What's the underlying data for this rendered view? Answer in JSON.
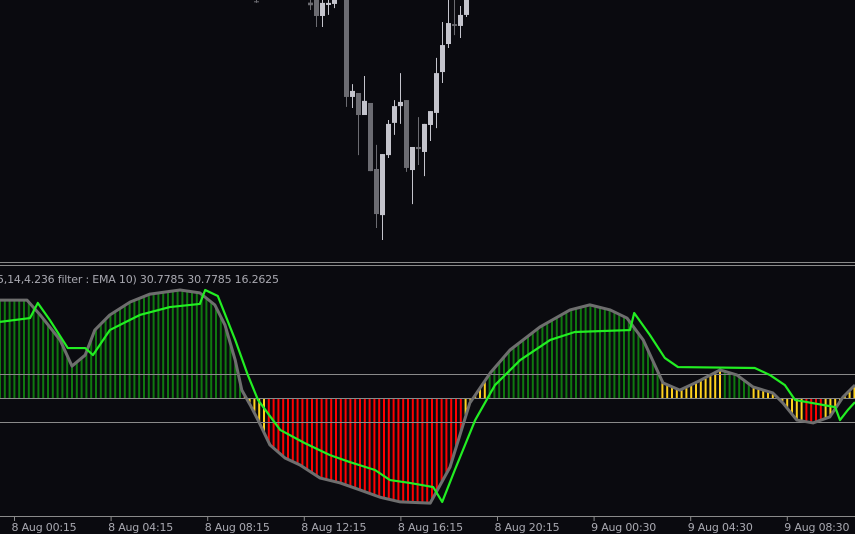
{
  "chart_data": [
    {
      "type": "candlestick",
      "title": "",
      "colors": {
        "bull": "#c4c4cc",
        "bear": "#6c6c72",
        "background": "#0a0a0f"
      },
      "candles": [
        {
          "bar": 42,
          "o": 99.5,
          "h": 100,
          "l": 98.9,
          "c": 99.3
        },
        {
          "bar": 51,
          "o": 99,
          "h": 100,
          "l": 96.2,
          "c": 98
        },
        {
          "bar": 52,
          "o": 100,
          "h": 100,
          "l": 89.7,
          "c": 93.9
        },
        {
          "bar": 53,
          "o": 93.9,
          "h": 100,
          "l": 89.7,
          "c": 98.9
        },
        {
          "bar": 54,
          "o": 98.1,
          "h": 100,
          "l": 94.3,
          "c": 98.9
        },
        {
          "bar": 55,
          "o": 98.5,
          "h": 100,
          "l": 96.9,
          "c": 100
        },
        {
          "bar": 57,
          "o": 100,
          "h": 100,
          "l": 59.2,
          "c": 63
        },
        {
          "bar": 58,
          "o": 63,
          "h": 67.9,
          "l": 58.8,
          "c": 65.3
        },
        {
          "bar": 59,
          "o": 64.5,
          "h": 64.5,
          "l": 40.8,
          "c": 56.1
        },
        {
          "bar": 60,
          "o": 56.1,
          "h": 71,
          "l": 56.1,
          "c": 61.5
        },
        {
          "bar": 61,
          "o": 60.7,
          "h": 60.7,
          "l": 34.7,
          "c": 34.7
        },
        {
          "bar": 62,
          "o": 35.5,
          "h": 44.7,
          "l": 13,
          "c": 18.3
        },
        {
          "bar": 63,
          "o": 17.9,
          "h": 41.2,
          "l": 8.4,
          "c": 41.2
        },
        {
          "bar": 64,
          "o": 40.8,
          "h": 54.2,
          "l": 39.7,
          "c": 52.7
        },
        {
          "bar": 65,
          "o": 53.1,
          "h": 61.8,
          "l": 48.5,
          "c": 59.5
        },
        {
          "bar": 66,
          "o": 59.5,
          "h": 72.1,
          "l": 52.7,
          "c": 61.1
        },
        {
          "bar": 67,
          "o": 61.8,
          "h": 61.8,
          "l": 34.4,
          "c": 35.9
        },
        {
          "bar": 68,
          "o": 35.1,
          "h": 43.9,
          "l": 22.1,
          "c": 43.9
        },
        {
          "bar": 69,
          "o": 43.9,
          "h": 55.3,
          "l": 37,
          "c": 43.1
        },
        {
          "bar": 70,
          "o": 42,
          "h": 52.7,
          "l": 32.8,
          "c": 52.7
        },
        {
          "bar": 71,
          "o": 52.3,
          "h": 57.6,
          "l": 46.2,
          "c": 57.6
        },
        {
          "bar": 72,
          "o": 56.9,
          "h": 77.9,
          "l": 51.1,
          "c": 72.1
        },
        {
          "bar": 73,
          "o": 72.5,
          "h": 91.6,
          "l": 68.3,
          "c": 82.8
        },
        {
          "bar": 74,
          "o": 83.2,
          "h": 100,
          "l": 81.7,
          "c": 91.2
        },
        {
          "bar": 75,
          "o": 90.8,
          "h": 100,
          "l": 86.6,
          "c": 90.1
        },
        {
          "bar": 76,
          "o": 90.1,
          "h": 97.7,
          "l": 85.5,
          "c": 94.3
        },
        {
          "bar": 77,
          "o": 94.3,
          "h": 100,
          "l": 93.5,
          "c": 100
        }
      ]
    },
    {
      "type": "bar+line",
      "label": "5,14,4.236 filter : EMA 10) 30.7785 30.7785 16.2625",
      "levels": [
        10,
        0,
        -10
      ],
      "ylim": [
        -48,
        48
      ],
      "colors": {
        "up": "#0f780f",
        "down": "#ff0000",
        "neutral": "#ffd21e",
        "envelope": "#6e6e6e",
        "signal": "#22ee22",
        "level": "#8a8a8a"
      },
      "histogram": [
        [
          0,
          40.8
        ],
        [
          4.5,
          40.8
        ],
        [
          6.7,
          34.6
        ],
        [
          10,
          24.2
        ],
        [
          12,
          13.3
        ],
        [
          14.2,
          17.9
        ],
        [
          15.8,
          28.3
        ],
        [
          18.3,
          34.6
        ],
        [
          21.7,
          40
        ],
        [
          25,
          43.3
        ],
        [
          30,
          45
        ],
        [
          33.3,
          43.8
        ],
        [
          35.8,
          38.8
        ],
        [
          37.5,
          30.4
        ],
        [
          39.2,
          15.8
        ],
        [
          40.3,
          3.3
        ],
        [
          41.7,
          -2.9
        ],
        [
          43,
          -9.2
        ],
        [
          45,
          -19.6
        ],
        [
          47.5,
          -25
        ],
        [
          50,
          -27.9
        ],
        [
          53.3,
          -33.3
        ],
        [
          56.7,
          -35.4
        ],
        [
          60,
          -38.3
        ],
        [
          63.3,
          -41.3
        ],
        [
          66.7,
          -43.3
        ],
        [
          71.7,
          -43.8
        ],
        [
          75,
          -28.8
        ],
        [
          78.3,
          -2.1
        ],
        [
          81.7,
          10.4
        ],
        [
          85,
          20
        ],
        [
          90,
          29.6
        ],
        [
          95,
          36.7
        ],
        [
          98.3,
          38.8
        ],
        [
          101.7,
          36.7
        ],
        [
          104.5,
          33.3
        ],
        [
          107.2,
          24.2
        ],
        [
          110.5,
          6.3
        ],
        [
          113.3,
          3.3
        ],
        [
          116.2,
          6.7
        ],
        [
          120,
          11.7
        ],
        [
          122.8,
          9.6
        ],
        [
          125.5,
          4.6
        ],
        [
          128.8,
          2.1
        ],
        [
          130.5,
          -2.1
        ],
        [
          132.8,
          -9.2
        ],
        [
          135.5,
          -10.4
        ],
        [
          138.3,
          -7.9
        ],
        [
          140.5,
          0.4
        ],
        [
          142.5,
          5.4
        ]
      ],
      "histogram_colors": [
        {
          "from": 0,
          "to": 40,
          "color": "up"
        },
        {
          "from": 40,
          "to": 44,
          "color": "neutral"
        },
        {
          "from": 44,
          "to": 77,
          "color": "down"
        },
        {
          "from": 77,
          "to": 81,
          "color": "neutral"
        },
        {
          "from": 81,
          "to": 110,
          "color": "up"
        },
        {
          "from": 110,
          "to": 120,
          "color": "neutral"
        },
        {
          "from": 120,
          "to": 125,
          "color": "up"
        },
        {
          "from": 125,
          "to": 134,
          "color": "neutral"
        },
        {
          "from": 134,
          "to": 137.5,
          "color": "down"
        },
        {
          "from": 137.5,
          "to": 143,
          "color": "neutral"
        }
      ],
      "signal": [
        [
          0,
          31.7
        ],
        [
          5,
          33.3
        ],
        [
          6.3,
          39.6
        ],
        [
          8.3,
          32.5
        ],
        [
          11.3,
          20.8
        ],
        [
          14.2,
          20.8
        ],
        [
          15.5,
          17.9
        ],
        [
          18.3,
          28.3
        ],
        [
          23.3,
          34.6
        ],
        [
          28.3,
          37.9
        ],
        [
          33.3,
          39.2
        ],
        [
          34.2,
          45
        ],
        [
          36.3,
          42.5
        ],
        [
          39.2,
          24.2
        ],
        [
          41.3,
          9.6
        ],
        [
          43,
          -0.8
        ],
        [
          46.7,
          -13.3
        ],
        [
          50.8,
          -18.8
        ],
        [
          55,
          -23.8
        ],
        [
          58.3,
          -26.7
        ],
        [
          62.5,
          -30
        ],
        [
          65,
          -34.2
        ],
        [
          68.3,
          -35.4
        ],
        [
          72.2,
          -37.1
        ],
        [
          73.7,
          -43.3
        ],
        [
          75.8,
          -30
        ],
        [
          79.2,
          -9.2
        ],
        [
          82.5,
          5.4
        ],
        [
          86.7,
          15.8
        ],
        [
          91.7,
          24.2
        ],
        [
          95.8,
          27.5
        ],
        [
          105,
          28.3
        ],
        [
          105.7,
          35.4
        ],
        [
          108.3,
          26.3
        ],
        [
          110.8,
          16.7
        ],
        [
          113,
          12.9
        ],
        [
          125.8,
          12.5
        ],
        [
          128.3,
          9.6
        ],
        [
          130.8,
          5.4
        ],
        [
          132.5,
          -0.8
        ],
        [
          139.2,
          -3.8
        ],
        [
          140,
          -9.2
        ],
        [
          141.3,
          -5
        ],
        [
          142.5,
          -1.7
        ]
      ]
    }
  ],
  "x_axis": {
    "labels": [
      "8 Aug 00:15",
      "8 Aug 04:15",
      "8 Aug 08:15",
      "8 Aug 12:15",
      "8 Aug 16:15",
      "8 Aug 20:15",
      "9 Aug 00:30",
      "9 Aug 04:30",
      "9 Aug 08:30"
    ]
  }
}
